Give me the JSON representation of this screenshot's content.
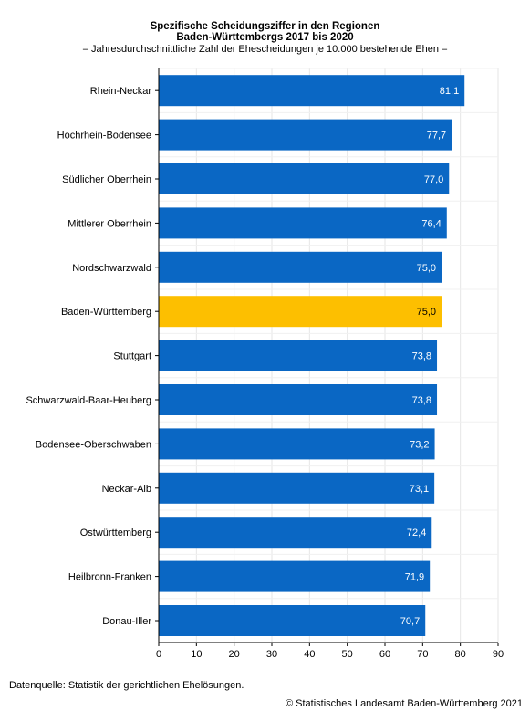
{
  "header": {
    "title_line1": "Spezifische Scheidungsziffer in den Regionen",
    "title_line2": "Baden-Württembergs 2017 bis 2020",
    "subtitle": "– Jahresdurchschnittliche Zahl der Ehescheidungen je 10.000 bestehende Ehen –"
  },
  "footer": {
    "source": "Datenquelle: Statistik der gerichtlichen Ehelösungen.",
    "copyright": "© Statistisches Landesamt Baden-Württemberg 2021"
  },
  "colors": {
    "bar": "#0a67c4",
    "highlight": "#fdbf00",
    "grid": "#e6e6e6"
  },
  "chart_data": {
    "type": "bar",
    "orientation": "horizontal",
    "categories": [
      "Rhein-Neckar",
      "Hochrhein-Bodensee",
      "Südlicher Oberrhein",
      "Mittlerer Oberrhein",
      "Nordschwarzwald",
      "Baden-Württemberg",
      "Stuttgart",
      "Schwarzwald-Baar-Heuberg",
      "Bodensee-Oberschwaben",
      "Neckar-Alb",
      "Ostwürttemberg",
      "Heilbronn-Franken",
      "Donau-Iller"
    ],
    "values": [
      81.1,
      77.7,
      77.0,
      76.4,
      75.0,
      75.0,
      73.8,
      73.8,
      73.2,
      73.1,
      72.4,
      71.9,
      70.7
    ],
    "value_labels": [
      "81,1",
      "77,7",
      "77,0",
      "76,4",
      "75,0",
      "75,0",
      "73,8",
      "73,8",
      "73,2",
      "73,1",
      "72,4",
      "71,9",
      "70,7"
    ],
    "highlight_index": 5,
    "xlim": [
      0,
      90
    ],
    "xticks": [
      0,
      10,
      20,
      30,
      40,
      50,
      60,
      70,
      80,
      90
    ],
    "grid": true,
    "legend": "none"
  }
}
